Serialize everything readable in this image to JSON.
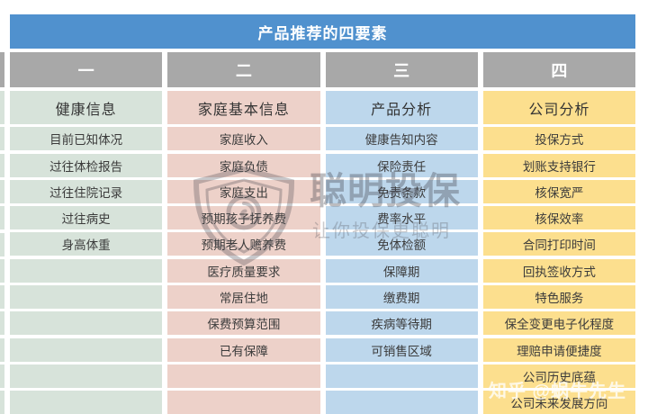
{
  "title": "产品推荐的四要素",
  "colors": {
    "title_bar": "#5091CE",
    "header_gray": "#A8A8A8",
    "col1": "#D7E3DA",
    "col2": "#EDD1C9",
    "col3": "#BDD7EC",
    "col4": "#FCDF8E",
    "text": "#3B3B3B"
  },
  "table": {
    "columns": [
      {
        "number_label": "一",
        "category": "健康信息",
        "color_key": "col1",
        "rows": [
          "目前已知体况",
          "过往体检报告",
          "过往住院记录",
          "过往病史",
          "身高体重",
          "",
          "",
          "",
          "",
          "",
          ""
        ]
      },
      {
        "number_label": "二",
        "category": "家庭基本信息",
        "color_key": "col2",
        "rows": [
          "家庭收入",
          "家庭负债",
          "家庭支出",
          "预期孩子抚养费",
          "预期老人赡养费",
          "医疗质量要求",
          "常居住地",
          "保费预算范围",
          "已有保障",
          "",
          ""
        ]
      },
      {
        "number_label": "三",
        "category": "产品分析",
        "color_key": "col3",
        "rows": [
          "健康告知内容",
          "保险责任",
          "免责条款",
          "费率水平",
          "免体检额",
          "保障期",
          "缴费期",
          "疾病等待期",
          "可销售区域",
          "",
          ""
        ]
      },
      {
        "number_label": "四",
        "category": "公司分析",
        "color_key": "col4",
        "rows": [
          "投保方式",
          "划账支持银行",
          "核保宽严",
          "核保效率",
          "合同打印时间",
          "回执签收方式",
          "特色服务",
          "保全变更电子化程度",
          "理赔申请便捷度",
          "公司历史底蕴",
          "公司未来发展方向"
        ]
      }
    ]
  },
  "watermark": {
    "brand": "聪明投保",
    "slogan": "让你投保更聪明",
    "icon": "shield-logo-icon"
  },
  "credit_watermark": "知乎 @蜗牛先生",
  "chart_data": {
    "type": "table",
    "title": "产品推荐的四要素",
    "column_headers": [
      "一",
      "二",
      "三",
      "四"
    ],
    "category_headers": [
      "健康信息",
      "家庭基本信息",
      "产品分析",
      "公司分析"
    ],
    "cells": {
      "健康信息": [
        "目前已知体况",
        "过往体检报告",
        "过往住院记录",
        "过往病史",
        "身高体重"
      ],
      "家庭基本信息": [
        "家庭收入",
        "家庭负债",
        "家庭支出",
        "预期孩子抚养费",
        "预期老人赡养费",
        "医疗质量要求",
        "常居住地",
        "保费预算范围",
        "已有保障"
      ],
      "产品分析": [
        "健康告知内容",
        "保险责任",
        "免责条款",
        "费率水平",
        "免体检额",
        "保障期",
        "缴费期",
        "疾病等待期",
        "可销售区域"
      ],
      "公司分析": [
        "投保方式",
        "划账支持银行",
        "核保宽严",
        "核保效率",
        "合同打印时间",
        "回执签收方式",
        "特色服务",
        "保全变更电子化程度",
        "理赔申请便捷度",
        "公司历史底蕴",
        "公司未来发展方向"
      ]
    },
    "layout": {
      "grid": "4 columns x (1 category header + 11 rows)",
      "legend": "none",
      "note": "infographic table, colored columns"
    }
  }
}
